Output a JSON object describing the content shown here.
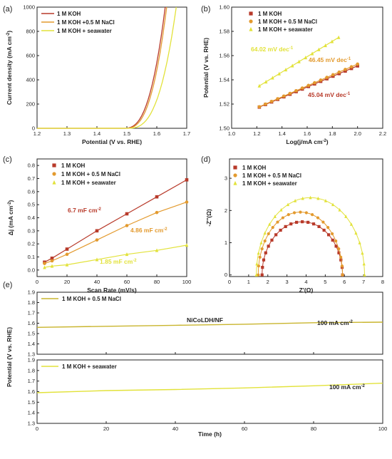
{
  "colors": {
    "koh": "#b83a2a",
    "nacl": "#e39a2e",
    "seawater": "#e2e23a",
    "axis": "#222222"
  },
  "panels": {
    "a": {
      "letter": "(a)"
    },
    "b": {
      "letter": "(b)",
      "slope_labels": [
        {
          "text": "64.02 mV dec",
          "sup": "-1"
        },
        {
          "text": "46.45 mV dec",
          "sup": "-1"
        },
        {
          "text": "45.04 mV dec",
          "sup": "-1"
        }
      ]
    },
    "c": {
      "letter": "(c)",
      "cdl_labels": [
        {
          "text": "6.7 mF cm",
          "sup": "-2"
        },
        {
          "text": "4.86 mF cm",
          "sup": "-2"
        },
        {
          "text": "1.85 mF cm",
          "sup": "-2"
        }
      ]
    },
    "d": {
      "letter": "(d)"
    },
    "e": {
      "letter": "(e)",
      "sample_label": "NiCoLDH/NF",
      "current_labels": [
        {
          "text": "100 mA cm",
          "sup": "-2"
        },
        {
          "text": "100 mA cm",
          "sup": "-2"
        }
      ]
    }
  },
  "chart_data": [
    {
      "id": "a",
      "type": "line",
      "xlabel": "Potential (V vs. RHE)",
      "ylabel": "Current density (mA cm",
      "ylabel_sup": "-2",
      "ylabel_end": ")",
      "xlim": [
        1.2,
        1.7
      ],
      "ylim": [
        0,
        1000
      ],
      "xticks": [
        "1.2",
        "1.3",
        "1.4",
        "1.5",
        "1.6",
        "1.7"
      ],
      "yticks": [
        "0",
        "200",
        "400",
        "600",
        "800",
        "1000"
      ],
      "legend": [
        "1 M KOH",
        "1 M KOH +0.5 M NaCl",
        "1 M KOH + seawater"
      ],
      "series": [
        {
          "name": "1 M KOH",
          "onset": 1.49,
          "end": 1.628,
          "pow": 2.7
        },
        {
          "name": "1 M KOH +0.5 M NaCl",
          "onset": 1.495,
          "end": 1.633,
          "pow": 2.7
        },
        {
          "name": "1 M KOH + seawater",
          "onset": 1.5,
          "end": 1.665,
          "pow": 2.9
        }
      ]
    },
    {
      "id": "b",
      "type": "scatter",
      "xlabel": "Log(j/mA cm",
      "xlabel_sup": "-2",
      "xlabel_end": ")",
      "ylabel": "Potential (V vs. RHE)",
      "xlim": [
        1.0,
        2.2
      ],
      "ylim": [
        1.5,
        1.6
      ],
      "xticks": [
        "1.0",
        "1.2",
        "1.4",
        "1.6",
        "1.8",
        "2.0",
        "2.2"
      ],
      "yticks": [
        "1.50",
        "1.52",
        "1.54",
        "1.56",
        "1.58",
        "1.60"
      ],
      "legend": [
        "1 M KOH",
        "1 M KOH + 0.5 M NaCl",
        "1 M KOH + seawater"
      ],
      "series": [
        {
          "name": "1 M KOH",
          "x": [
            1.22,
            2.0
          ],
          "y": [
            1.5175,
            1.5515
          ]
        },
        {
          "name": "1 M KOH + 0.5 M NaCl",
          "x": [
            1.22,
            2.0
          ],
          "y": [
            1.5178,
            1.553
          ]
        },
        {
          "name": "1 M KOH + seawater",
          "x": [
            1.22,
            1.85
          ],
          "y": [
            1.535,
            1.575
          ]
        }
      ]
    },
    {
      "id": "c",
      "type": "scatter",
      "xlabel": "Scan Rate (mV/s)",
      "ylabel": "Δj (mA cm",
      "ylabel_sup": "-2",
      "ylabel_end": ")",
      "xlim": [
        0,
        100
      ],
      "ylim": [
        -0.05,
        0.85
      ],
      "xticks": [
        "0",
        "20",
        "40",
        "60",
        "80",
        "100"
      ],
      "yticks": [
        "0.0",
        "0.1",
        "0.2",
        "0.3",
        "0.4",
        "0.5",
        "0.6",
        "0.7",
        "0.8"
      ],
      "legend": [
        "1 M KOH",
        "1 M KOH + 0.5 M NaCl",
        "1 M KOH + seawater"
      ],
      "series": [
        {
          "name": "1 M KOH",
          "x": [
            5,
            10,
            20,
            40,
            60,
            80,
            100
          ],
          "y": [
            0.06,
            0.09,
            0.16,
            0.3,
            0.43,
            0.56,
            0.69
          ]
        },
        {
          "name": "1 M KOH + 0.5 M NaCl",
          "x": [
            5,
            10,
            20,
            40,
            60,
            80,
            100
          ],
          "y": [
            0.05,
            0.07,
            0.12,
            0.23,
            0.34,
            0.44,
            0.52
          ]
        },
        {
          "name": "1 M KOH + seawater",
          "x": [
            5,
            10,
            20,
            40,
            60,
            80,
            100
          ],
          "y": [
            0.02,
            0.03,
            0.04,
            0.08,
            0.12,
            0.15,
            0.19
          ]
        }
      ]
    },
    {
      "id": "d",
      "type": "scatter",
      "xlabel": "Z'(Ω)",
      "ylabel": "-Z''(Ω)",
      "xlim": [
        0,
        8
      ],
      "ylim": [
        -0.05,
        3.6
      ],
      "xticks": [
        "0",
        "1",
        "2",
        "3",
        "4",
        "5",
        "6",
        "7",
        "8"
      ],
      "yticks": [
        "0",
        "1",
        "2",
        "3"
      ],
      "legend": [
        "1 M KOH",
        "1 M KOH + 0.5 M NaCl",
        "1 M KOH + seawater"
      ],
      "series": [
        {
          "name": "1 M KOH",
          "x_start": 1.7,
          "x_end": 5.9,
          "peak": 1.65
        },
        {
          "name": "1 M KOH + 0.5 M NaCl",
          "x_start": 1.5,
          "x_end": 5.9,
          "peak": 1.95
        },
        {
          "name": "1 M KOH + seawater",
          "x_start": 1.4,
          "x_end": 7.05,
          "peak": 2.4
        }
      ]
    },
    {
      "id": "e",
      "type": "line",
      "xlabel": "Time (h)",
      "ylabel": "Potential (V vs. RHE)",
      "xlim": [
        0,
        100
      ],
      "xticks": [
        "0",
        "20",
        "40",
        "60",
        "80",
        "100"
      ],
      "subplots": [
        {
          "ylim": [
            1.3,
            1.9
          ],
          "yticks": [
            "1.3",
            "1.4",
            "1.5",
            "1.6",
            "1.7",
            "1.8",
            "1.9"
          ],
          "legend": "1 M KOH + 0.5 M NaCl",
          "series": {
            "name": "1 M KOH + 0.5 M NaCl",
            "x": [
              0,
              20,
              40,
              60,
              80,
              100
            ],
            "y": [
              1.56,
              1.57,
              1.58,
              1.59,
              1.605,
              1.61
            ]
          }
        },
        {
          "ylim": [
            1.3,
            1.9
          ],
          "yticks": [
            "1.3",
            "1.4",
            "1.5",
            "1.6",
            "1.7",
            "1.8",
            "1.9"
          ],
          "legend": "1 M KOH + seawater",
          "series": {
            "name": "1 M KOH + seawater",
            "x": [
              0,
              20,
              40,
              60,
              80,
              100
            ],
            "y": [
              1.59,
              1.61,
              1.62,
              1.635,
              1.655,
              1.68
            ]
          }
        }
      ]
    }
  ]
}
